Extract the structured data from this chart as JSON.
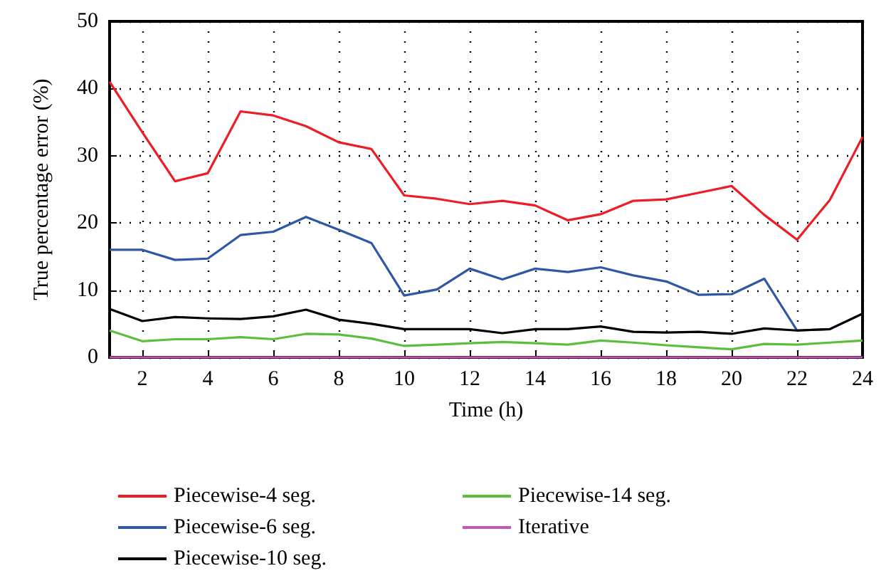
{
  "chart_data": {
    "type": "line",
    "xlabel": "Time (h)",
    "ylabel": "True percentage error (%)",
    "x": [
      1,
      2,
      3,
      4,
      5,
      6,
      7,
      8,
      9,
      10,
      11,
      12,
      13,
      14,
      15,
      16,
      17,
      18,
      19,
      20,
      21,
      22,
      23,
      24
    ],
    "xlim": [
      1,
      24
    ],
    "xticks": [
      2,
      4,
      6,
      8,
      10,
      12,
      14,
      16,
      18,
      20,
      22,
      24
    ],
    "ylim": [
      0,
      50
    ],
    "yticks": [
      0,
      10,
      20,
      30,
      40,
      50
    ],
    "grid": true,
    "legend": "bottom",
    "marker": "none",
    "line_style": "solid",
    "series": [
      {
        "name": "Piecewise-4 seg.",
        "color": "#ee1c25",
        "values": [
          41,
          33.5,
          26.2,
          27.4,
          36.6,
          36,
          34.4,
          32,
          31,
          24.1,
          23.6,
          22.8,
          23.3,
          22.6,
          20.4,
          21.3,
          23.3,
          23.5,
          24.5,
          25.5,
          21.2,
          17.5,
          23.4,
          32.8
        ]
      },
      {
        "name": "Piecewise-6 seg.",
        "color": "#2e57a6",
        "values": [
          16,
          16,
          14.5,
          14.7,
          18.2,
          18.7,
          20.9,
          19,
          17,
          9.2,
          10.1,
          13.2,
          11.6,
          13.2,
          12.7,
          13.4,
          12.2,
          11.3,
          9.3,
          9.4,
          11.7,
          4,
          4.2,
          6.5
        ]
      },
      {
        "name": "Piecewise-10 seg.",
        "color": "#000000",
        "values": [
          7.2,
          5.4,
          6,
          5.8,
          5.7,
          6.1,
          7.1,
          5.6,
          5,
          4.2,
          4.2,
          4.2,
          3.6,
          4.2,
          4.2,
          4.6,
          3.8,
          3.7,
          3.8,
          3.5,
          4.3,
          4,
          4.2,
          6.5
        ]
      },
      {
        "name": "Piecewise-14 seg.",
        "color": "#5cbf3c",
        "values": [
          4,
          2.4,
          2.7,
          2.7,
          3,
          2.7,
          3.5,
          3.4,
          2.8,
          1.7,
          1.9,
          2.1,
          2.3,
          2.1,
          1.9,
          2.5,
          2.2,
          1.8,
          1.5,
          1.2,
          2,
          1.9,
          2.2,
          2.5
        ]
      },
      {
        "name": "Iterative",
        "color": "#c355b6",
        "values": [
          0,
          0,
          0,
          0,
          0,
          0,
          0,
          0,
          0,
          0,
          0,
          0,
          0,
          0,
          0,
          0,
          0,
          0,
          0,
          0,
          0,
          0,
          0,
          0
        ]
      }
    ]
  }
}
